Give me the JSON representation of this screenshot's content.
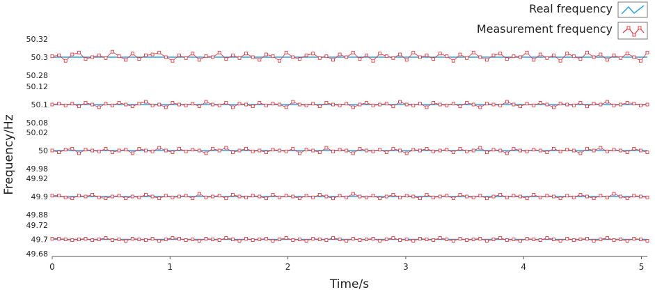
{
  "chart_data": {
    "type": "line",
    "xlabel": "Time/s",
    "ylabel": "Frequency/Hz",
    "xlim": [
      0,
      5.05
    ],
    "x_ticks": [
      "0",
      "1",
      "2",
      "3",
      "4",
      "5"
    ],
    "grid": false,
    "legend_position": "top-right",
    "legend": [
      {
        "label": "Real frequency",
        "color": "#29a3e6"
      },
      {
        "label": "Measurement frequency",
        "color": "#e8383c"
      }
    ],
    "panels": [
      {
        "real": 50.3,
        "ylim": [
          50.28,
          50.32
        ],
        "ticks": [
          "50.32",
          "50.3",
          "50.28"
        ],
        "tick_values": [
          50.32,
          50.3,
          50.28
        ],
        "measured": [
          50.301,
          50.302,
          50.296,
          50.303,
          50.305,
          50.298,
          50.3,
          50.302,
          50.299,
          50.306,
          50.301,
          50.297,
          50.304,
          50.298,
          50.302,
          50.303,
          50.305,
          50.3,
          50.296,
          50.302,
          50.299,
          50.304,
          50.297,
          50.301,
          50.3,
          50.305,
          50.298,
          50.302,
          50.299,
          50.304,
          50.3,
          50.297,
          50.303,
          50.301,
          50.296,
          50.305,
          50.3,
          50.298,
          50.302,
          50.304,
          50.299,
          50.301,
          50.297,
          50.303,
          50.3,
          50.305,
          50.298,
          50.302,
          50.296,
          50.304,
          50.301,
          50.299,
          50.303,
          50.297,
          50.305,
          50.3,
          50.302,
          50.298,
          50.304,
          50.301,
          50.296,
          50.303,
          50.299,
          50.305,
          50.3,
          50.297,
          50.302,
          50.304,
          50.298,
          50.301,
          50.3,
          50.305,
          50.297,
          50.303,
          50.299,
          50.302,
          50.296,
          50.304,
          50.301,
          50.298,
          50.305,
          50.3,
          50.303,
          50.297,
          50.302,
          50.299,
          50.304,
          50.3,
          50.296,
          50.305
        ]
      },
      {
        "real": 50.1,
        "ylim": [
          50.08,
          50.12
        ],
        "ticks": [
          "50.12",
          "50.1",
          "50.08"
        ],
        "tick_values": [
          50.12,
          50.1,
          50.08
        ],
        "measured": [
          50.1,
          50.101,
          50.099,
          50.101,
          50.098,
          50.102,
          50.1,
          50.097,
          50.101,
          50.099,
          50.102,
          50.1,
          50.098,
          50.101,
          50.103,
          50.099,
          50.1,
          50.097,
          50.102,
          50.1,
          50.099,
          50.101,
          50.098,
          50.103,
          50.1,
          50.099,
          50.102,
          50.097,
          50.101,
          50.1,
          50.098,
          50.102,
          50.099,
          50.101,
          50.1,
          50.097,
          50.103,
          50.1,
          50.099,
          50.101,
          50.098,
          50.102,
          50.1,
          50.099,
          50.101,
          50.097,
          50.1,
          50.102,
          50.099,
          50.1,
          50.101,
          50.098,
          50.103,
          50.1,
          50.099,
          50.101,
          50.097,
          50.102,
          50.1,
          50.099,
          50.101,
          50.098,
          50.102,
          50.1,
          50.097,
          50.101,
          50.1,
          50.099,
          50.103,
          50.1,
          50.098,
          50.101,
          50.099,
          50.102,
          50.1,
          50.097,
          50.101,
          50.1,
          50.099,
          50.102,
          50.098,
          50.101,
          50.1,
          50.103,
          50.099,
          50.1,
          50.102,
          50.101,
          50.099,
          50.1
        ]
      },
      {
        "real": 50.0,
        "ylim": [
          49.98,
          50.02
        ],
        "ticks": [
          "50.02",
          "50",
          "49.98"
        ],
        "tick_values": [
          50.02,
          50.0,
          49.98
        ],
        "measured": [
          50.0,
          49.998,
          50.001,
          50.002,
          49.997,
          50.001,
          50.0,
          49.999,
          50.002,
          49.998,
          50.0,
          50.001,
          49.997,
          50.002,
          50.0,
          49.999,
          50.003,
          50.0,
          49.998,
          50.002,
          49.999,
          50.001,
          50.0,
          49.997,
          50.002,
          50.0,
          50.003,
          49.998,
          50.0,
          50.002,
          49.999,
          50.0,
          49.998,
          50.001,
          50.0,
          49.999,
          50.002,
          49.997,
          50.001,
          50.0,
          49.998,
          50.003,
          49.999,
          50.001,
          50.0,
          49.997,
          50.002,
          50.0,
          49.999,
          50.001,
          49.998,
          50.002,
          50.0,
          49.997,
          50.001,
          50.0,
          50.002,
          49.999,
          50.0,
          50.001,
          49.998,
          50.002,
          49.999,
          50.0,
          50.003,
          49.998,
          50.001,
          50.0,
          49.997,
          50.002,
          50.0,
          49.999,
          50.001,
          50.0,
          49.998,
          50.002,
          49.999,
          50.001,
          50.0,
          49.997,
          50.002,
          50.0,
          50.003,
          49.999,
          50.001,
          50.0,
          49.998,
          50.002,
          50.0,
          49.998
        ]
      },
      {
        "real": 49.9,
        "ylim": [
          49.88,
          49.92
        ],
        "ticks": [
          "49.92",
          "49.9",
          "49.88"
        ],
        "tick_values": [
          49.92,
          49.9,
          49.88
        ],
        "measured": [
          49.901,
          49.901,
          49.899,
          49.898,
          49.901,
          49.9,
          49.902,
          49.899,
          49.898,
          49.9,
          49.901,
          49.898,
          49.9,
          49.899,
          49.902,
          49.9,
          49.898,
          49.901,
          49.899,
          49.9,
          49.901,
          49.898,
          49.903,
          49.899,
          49.9,
          49.901,
          49.898,
          49.902,
          49.9,
          49.899,
          49.901,
          49.9,
          49.898,
          49.902,
          49.899,
          49.901,
          49.9,
          49.898,
          49.901,
          49.899,
          49.902,
          49.9,
          49.898,
          49.901,
          49.899,
          49.903,
          49.9,
          49.899,
          49.901,
          49.898,
          49.9,
          49.902,
          49.899,
          49.901,
          49.9,
          49.898,
          49.902,
          49.899,
          49.9,
          49.901,
          49.898,
          49.902,
          49.9,
          49.899,
          49.901,
          49.898,
          49.9,
          49.902,
          49.899,
          49.901,
          49.9,
          49.898,
          49.902,
          49.899,
          49.901,
          49.9,
          49.898,
          49.901,
          49.899,
          49.902,
          49.9,
          49.898,
          49.901,
          49.899,
          49.903,
          49.9,
          49.898,
          49.901,
          49.9,
          49.899
        ]
      },
      {
        "real": 49.7,
        "ylim": [
          49.68,
          49.72
        ],
        "ticks": [
          "49.72",
          "49.7",
          "49.68"
        ],
        "tick_values": [
          49.72,
          49.7,
          49.68
        ],
        "measured": [
          49.701,
          49.701,
          49.7,
          49.699,
          49.7,
          49.701,
          49.699,
          49.7,
          49.702,
          49.699,
          49.7,
          49.698,
          49.701,
          49.7,
          49.699,
          49.701,
          49.698,
          49.7,
          49.702,
          49.701,
          49.699,
          49.7,
          49.698,
          49.701,
          49.7,
          49.699,
          49.702,
          49.7,
          49.698,
          49.701,
          49.699,
          49.7,
          49.701,
          49.698,
          49.7,
          49.702,
          49.699,
          49.7,
          49.698,
          49.701,
          49.7,
          49.699,
          49.702,
          49.7,
          49.698,
          49.701,
          49.699,
          49.7,
          49.701,
          49.698,
          49.7,
          49.702,
          49.699,
          49.7,
          49.698,
          49.701,
          49.7,
          49.699,
          49.702,
          49.7,
          49.698,
          49.701,
          49.699,
          49.7,
          49.701,
          49.698,
          49.7,
          49.702,
          49.699,
          49.7,
          49.698,
          49.701,
          49.7,
          49.699,
          49.702,
          49.7,
          49.698,
          49.701,
          49.699,
          49.7,
          49.701,
          49.698,
          49.7,
          49.702,
          49.699,
          49.7,
          49.698,
          49.701,
          49.7,
          49.698
        ]
      }
    ]
  }
}
